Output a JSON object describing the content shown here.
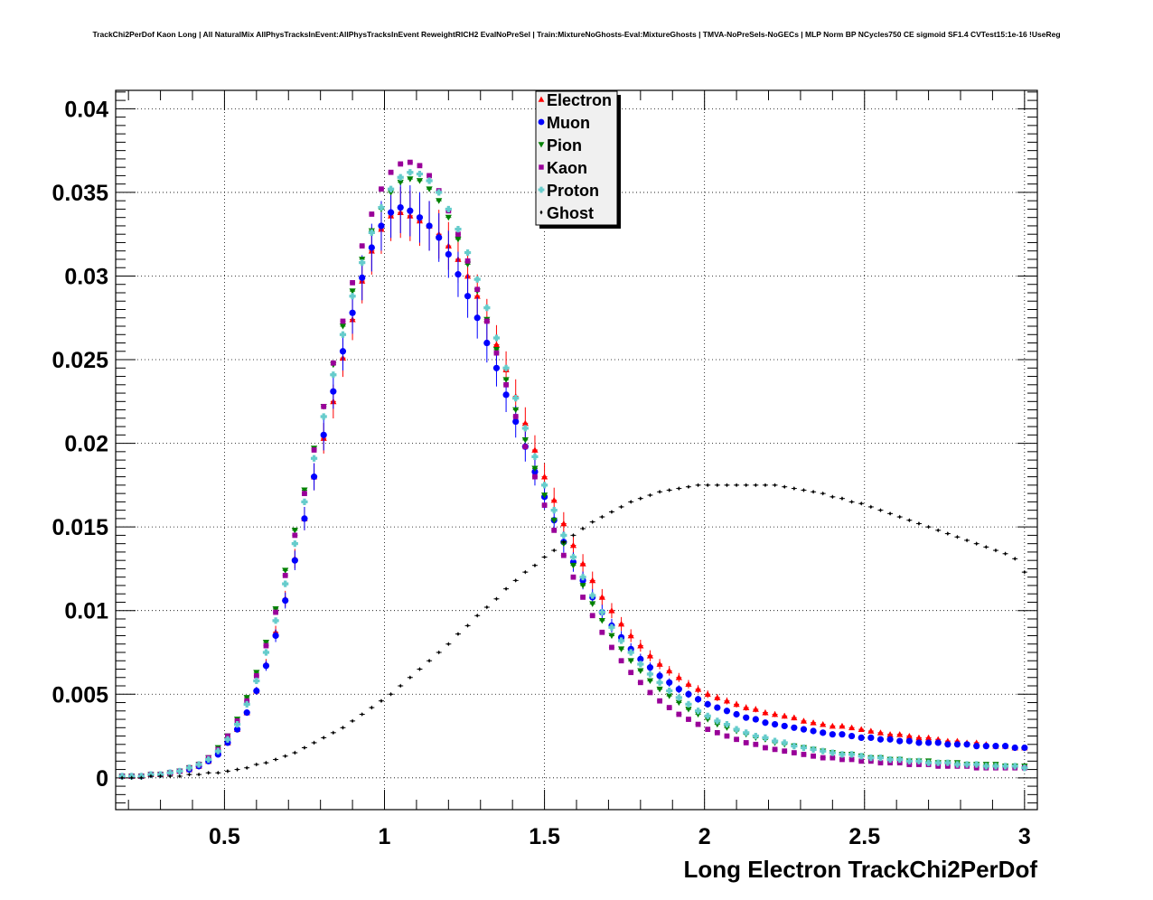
{
  "title": "TrackChi2PerDof Kaon Long | All NaturalMix AllPhysTracksInEvent:AllPhysTracksInEvent ReweightRICH2 EvalNoPreSel | Train:MixtureNoGhosts-Eval:MixtureGhosts | TMVA-NoPreSels-NoGECs | MLP Norm BP NCycles750 CE sigmoid SF1.4 CVTest15:1e-16 !UseReg",
  "chart_data": {
    "type": "scatter",
    "title": "TrackChi2PerDof Kaon Long | All NaturalMix AllPhysTracksInEvent:AllPhysTracksInEvent ReweightRICH2 EvalNoPreSel | Train:MixtureNoGhosts-Eval:MixtureGhosts | TMVA-NoPreSels-NoGECs | MLP Norm BP NCycles750 CE sigmoid SF1.4 CVTest15:1e-16 !UseReg",
    "xlabel": "Long Electron TrackChi2PerDof",
    "ylabel": "",
    "xlim": [
      0.16,
      3.04
    ],
    "ylim": [
      -0.0019,
      0.0411
    ],
    "grid": true,
    "legend_position": "top-center",
    "xticks": [
      0.5,
      1,
      1.5,
      2,
      2.5,
      3
    ],
    "xtick_labels": [
      "0.5",
      "1",
      "1.5",
      "2",
      "2.5",
      "3"
    ],
    "yticks": [
      0,
      0.005,
      0.01,
      0.015,
      0.02,
      0.025,
      0.03,
      0.035,
      0.04
    ],
    "ytick_labels": [
      "0",
      "0.005",
      "0.01",
      "0.015",
      "0.02",
      "0.025",
      "0.03",
      "0.035",
      "0.04"
    ],
    "x": [
      0.18,
      0.21,
      0.24,
      0.27,
      0.3,
      0.33,
      0.36,
      0.39,
      0.42,
      0.45,
      0.48,
      0.51,
      0.54,
      0.57,
      0.6,
      0.63,
      0.66,
      0.69,
      0.72,
      0.75,
      0.78,
      0.81,
      0.84,
      0.87,
      0.9,
      0.93,
      0.96,
      0.99,
      1.02,
      1.05,
      1.08,
      1.11,
      1.14,
      1.17,
      1.2,
      1.23,
      1.26,
      1.29,
      1.32,
      1.35,
      1.38,
      1.41,
      1.44,
      1.47,
      1.5,
      1.53,
      1.56,
      1.59,
      1.62,
      1.65,
      1.68,
      1.71,
      1.74,
      1.77,
      1.8,
      1.83,
      1.86,
      1.89,
      1.92,
      1.95,
      1.98,
      2.01,
      2.04,
      2.07,
      2.1,
      2.13,
      2.16,
      2.19,
      2.22,
      2.25,
      2.28,
      2.31,
      2.34,
      2.37,
      2.4,
      2.43,
      2.46,
      2.49,
      2.52,
      2.55,
      2.58,
      2.61,
      2.64,
      2.67,
      2.7,
      2.73,
      2.76,
      2.79,
      2.82,
      2.85,
      2.88,
      2.91,
      2.94,
      2.97,
      3.0
    ],
    "series": [
      {
        "name": "Electron",
        "color": "#ff0000",
        "marker": "triangle-up",
        "values": [
          0.0001,
          0.0001,
          0.0001,
          0.0002,
          0.0002,
          0.0003,
          0.0004,
          0.0005,
          0.0007,
          0.001,
          0.0015,
          0.0021,
          0.0029,
          0.0039,
          0.0052,
          0.0068,
          0.0087,
          0.0107,
          0.0131,
          0.0155,
          0.018,
          0.0203,
          0.0225,
          0.0251,
          0.0274,
          0.0297,
          0.0315,
          0.0328,
          0.0336,
          0.0338,
          0.0336,
          0.0333,
          0.033,
          0.0325,
          0.0318,
          0.031,
          0.03,
          0.0288,
          0.0274,
          0.0259,
          0.0244,
          0.0228,
          0.0212,
          0.0196,
          0.018,
          0.0166,
          0.0152,
          0.0139,
          0.0128,
          0.0118,
          0.0108,
          0.01,
          0.0092,
          0.0085,
          0.0079,
          0.0073,
          0.0068,
          0.0064,
          0.006,
          0.0056,
          0.0053,
          0.005,
          0.0048,
          0.0046,
          0.0044,
          0.0042,
          0.0041,
          0.0039,
          0.0038,
          0.0037,
          0.0036,
          0.0034,
          0.0033,
          0.0032,
          0.0031,
          0.0031,
          0.003,
          0.0029,
          0.0028,
          0.0027,
          0.0026,
          0.0026,
          0.0025,
          0.0024,
          0.0024,
          0.0023,
          0.0022,
          0.0022,
          0.0021,
          0.0021,
          0.002,
          0.0019,
          0.0019,
          0.0018,
          0.0018
        ]
      },
      {
        "name": "Muon",
        "color": "#0000ff",
        "marker": "circle",
        "values": [
          0.0001,
          0.0001,
          0.0001,
          0.0002,
          0.0002,
          0.0003,
          0.0004,
          0.0005,
          0.0007,
          0.001,
          0.0014,
          0.0021,
          0.0029,
          0.0039,
          0.0052,
          0.0067,
          0.0085,
          0.0106,
          0.013,
          0.0155,
          0.018,
          0.0205,
          0.0231,
          0.0255,
          0.0278,
          0.0299,
          0.0317,
          0.033,
          0.0338,
          0.0341,
          0.0339,
          0.0335,
          0.033,
          0.0323,
          0.0313,
          0.0301,
          0.0288,
          0.0275,
          0.026,
          0.0245,
          0.0229,
          0.0213,
          0.0198,
          0.0183,
          0.0168,
          0.0154,
          0.0141,
          0.0129,
          0.0118,
          0.0108,
          0.0099,
          0.0091,
          0.0084,
          0.0077,
          0.0071,
          0.0066,
          0.0061,
          0.0057,
          0.0053,
          0.005,
          0.0047,
          0.0044,
          0.0042,
          0.004,
          0.0038,
          0.0036,
          0.0035,
          0.0033,
          0.0032,
          0.0031,
          0.003,
          0.0029,
          0.0028,
          0.0027,
          0.0026,
          0.0026,
          0.0025,
          0.0024,
          0.0024,
          0.0023,
          0.0023,
          0.0022,
          0.0022,
          0.0021,
          0.0021,
          0.0021,
          0.002,
          0.002,
          0.002,
          0.0019,
          0.0019,
          0.0019,
          0.0019,
          0.0018,
          0.0018
        ]
      },
      {
        "name": "Pion",
        "color": "#008000",
        "marker": "triangle-down",
        "values": [
          0.0001,
          0.0001,
          0.0001,
          0.0002,
          0.0002,
          0.0003,
          0.0004,
          0.0006,
          0.0008,
          0.0012,
          0.0018,
          0.0025,
          0.0035,
          0.0048,
          0.0063,
          0.0081,
          0.0101,
          0.0124,
          0.0148,
          0.0172,
          0.0197,
          0.0222,
          0.0247,
          0.027,
          0.0291,
          0.031,
          0.0327,
          0.034,
          0.035,
          0.0356,
          0.0358,
          0.0357,
          0.0352,
          0.0345,
          0.0335,
          0.0322,
          0.0307,
          0.0291,
          0.0274,
          0.0256,
          0.0238,
          0.022,
          0.0202,
          0.0185,
          0.0169,
          0.0154,
          0.014,
          0.0127,
          0.0115,
          0.0104,
          0.0094,
          0.0085,
          0.0077,
          0.007,
          0.0064,
          0.0058,
          0.0053,
          0.0049,
          0.0045,
          0.0041,
          0.0038,
          0.0035,
          0.0032,
          0.003,
          0.0028,
          0.0026,
          0.0024,
          0.0023,
          0.0021,
          0.002,
          0.0019,
          0.0018,
          0.0017,
          0.0016,
          0.0015,
          0.0014,
          0.0014,
          0.0013,
          0.0012,
          0.0012,
          0.0011,
          0.0011,
          0.001,
          0.001,
          0.001,
          0.0009,
          0.0009,
          0.0009,
          0.0008,
          0.0008,
          0.0008,
          0.0008,
          0.0007,
          0.0007,
          0.0007
        ]
      },
      {
        "name": "Kaon",
        "color": "#990099",
        "marker": "square",
        "values": [
          0.0001,
          0.0001,
          0.0001,
          0.0002,
          0.0002,
          0.0003,
          0.0004,
          0.0006,
          0.0008,
          0.0012,
          0.0017,
          0.0025,
          0.0034,
          0.0046,
          0.0061,
          0.0079,
          0.0099,
          0.0121,
          0.0145,
          0.017,
          0.0196,
          0.0222,
          0.0248,
          0.0273,
          0.0296,
          0.0318,
          0.0337,
          0.0352,
          0.0362,
          0.0367,
          0.0368,
          0.0366,
          0.036,
          0.0351,
          0.0339,
          0.0325,
          0.0309,
          0.0292,
          0.0273,
          0.0254,
          0.0235,
          0.0216,
          0.0198,
          0.018,
          0.0163,
          0.0148,
          0.0133,
          0.012,
          0.0108,
          0.0097,
          0.0087,
          0.0078,
          0.007,
          0.0063,
          0.0057,
          0.0051,
          0.0046,
          0.0042,
          0.0038,
          0.0035,
          0.0032,
          0.0029,
          0.0027,
          0.0025,
          0.0023,
          0.0021,
          0.002,
          0.0018,
          0.0017,
          0.0016,
          0.0015,
          0.0014,
          0.0013,
          0.0012,
          0.0012,
          0.0011,
          0.0011,
          0.001,
          0.001,
          0.0009,
          0.0009,
          0.0009,
          0.0008,
          0.0008,
          0.0008,
          0.0007,
          0.0007,
          0.0007,
          0.0007,
          0.0006,
          0.0006,
          0.0006,
          0.0006,
          0.0006,
          0.0006
        ]
      },
      {
        "name": "Proton",
        "color": "#66cccc",
        "marker": "cross",
        "values": [
          0.0001,
          0.0001,
          0.0001,
          0.0002,
          0.0002,
          0.0003,
          0.0004,
          0.0006,
          0.0008,
          0.0011,
          0.0016,
          0.0023,
          0.0032,
          0.0044,
          0.0058,
          0.0075,
          0.0094,
          0.0116,
          0.014,
          0.0165,
          0.0191,
          0.0216,
          0.0241,
          0.0265,
          0.0288,
          0.0308,
          0.0326,
          0.0341,
          0.0352,
          0.0359,
          0.0362,
          0.0361,
          0.0357,
          0.035,
          0.034,
          0.0328,
          0.0314,
          0.0298,
          0.0281,
          0.0263,
          0.0245,
          0.0227,
          0.0209,
          0.0192,
          0.0175,
          0.016,
          0.0145,
          0.0132,
          0.012,
          0.0109,
          0.0099,
          0.009,
          0.0082,
          0.0075,
          0.0068,
          0.0062,
          0.0057,
          0.0052,
          0.0048,
          0.0044,
          0.004,
          0.0037,
          0.0034,
          0.0032,
          0.0029,
          0.0027,
          0.0025,
          0.0024,
          0.0022,
          0.0021,
          0.0019,
          0.0018,
          0.0017,
          0.0016,
          0.0015,
          0.0014,
          0.0014,
          0.0013,
          0.0012,
          0.0012,
          0.0011,
          0.0011,
          0.001,
          0.001,
          0.0009,
          0.0009,
          0.0009,
          0.0008,
          0.0008,
          0.0008,
          0.0007,
          0.0007,
          0.0007,
          0.0007,
          0.0006
        ]
      },
      {
        "name": "Ghost",
        "color": "#000000",
        "marker": "diamond",
        "values": [
          0.0,
          0.0,
          0.0,
          0.0001,
          0.0001,
          0.0001,
          0.0001,
          0.0002,
          0.0002,
          0.0003,
          0.0003,
          0.0004,
          0.0005,
          0.0006,
          0.0008,
          0.0009,
          0.0011,
          0.0013,
          0.0015,
          0.0018,
          0.0021,
          0.0024,
          0.0027,
          0.003,
          0.0034,
          0.0038,
          0.0042,
          0.0046,
          0.005,
          0.0055,
          0.006,
          0.0065,
          0.007,
          0.0075,
          0.008,
          0.0086,
          0.0091,
          0.0097,
          0.0102,
          0.0107,
          0.0113,
          0.0118,
          0.0123,
          0.0127,
          0.0132,
          0.0136,
          0.0141,
          0.0145,
          0.0149,
          0.0153,
          0.0156,
          0.0159,
          0.0162,
          0.0165,
          0.0167,
          0.0169,
          0.0171,
          0.0172,
          0.0173,
          0.0174,
          0.0175,
          0.0175,
          0.0175,
          0.0175,
          0.0175,
          0.0175,
          0.0175,
          0.0175,
          0.0175,
          0.0174,
          0.0173,
          0.0172,
          0.0171,
          0.017,
          0.0168,
          0.0167,
          0.0165,
          0.0164,
          0.0162,
          0.016,
          0.0158,
          0.0156,
          0.0154,
          0.0152,
          0.015,
          0.0148,
          0.0146,
          0.0144,
          0.0142,
          0.014,
          0.0138,
          0.0136,
          0.0134,
          0.0131,
          0.0123
        ]
      }
    ]
  }
}
